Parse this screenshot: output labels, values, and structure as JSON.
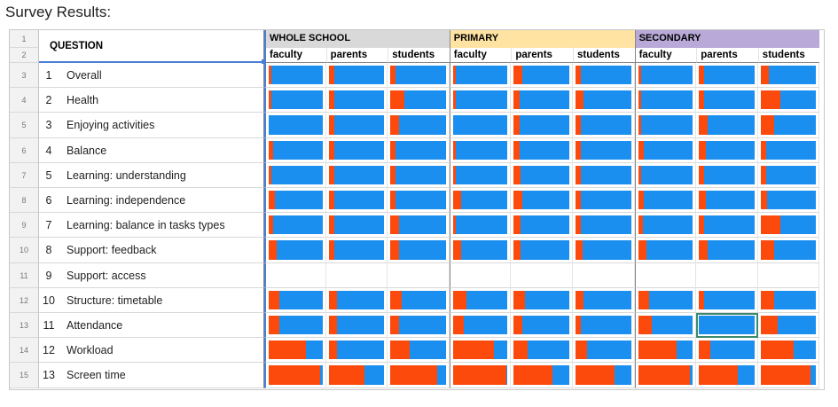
{
  "title": "Survey Results:",
  "colors": {
    "negative": "#fc4a0d",
    "positive": "#1a8ff0",
    "whole_school": "#d9d9d9",
    "primary": "#ffe3a3",
    "secondary": "#b8a9d8"
  },
  "question_header": "QUESTION",
  "groups": [
    {
      "label": "WHOLE SCHOOL",
      "color": "#d9d9d9"
    },
    {
      "label": "PRIMARY",
      "color": "#ffe3a3"
    },
    {
      "label": "SECONDARY",
      "color": "#b8a9d8"
    }
  ],
  "subcols": [
    "faculty",
    "parents",
    "students"
  ],
  "header_rows": [
    "1",
    "2"
  ],
  "rows": [
    {
      "rownum": "3",
      "num": "1",
      "label": "Overall",
      "neg": [
        0.05,
        0.1,
        0.1,
        0.05,
        0.15,
        0.1,
        0.05,
        0.1,
        0.15
      ]
    },
    {
      "rownum": "4",
      "num": "2",
      "label": "Health",
      "neg": [
        0.05,
        0.1,
        0.25,
        0.05,
        0.1,
        0.15,
        0.05,
        0.1,
        0.35
      ]
    },
    {
      "rownum": "5",
      "num": "3",
      "label": "Enjoying activities",
      "neg": [
        0.0,
        0.1,
        0.15,
        0.0,
        0.1,
        0.1,
        0.05,
        0.15,
        0.25
      ]
    },
    {
      "rownum": "6",
      "num": "4",
      "label": "Balance",
      "neg": [
        0.08,
        0.1,
        0.1,
        0.05,
        0.1,
        0.1,
        0.1,
        0.12,
        0.1
      ]
    },
    {
      "rownum": "7",
      "num": "5",
      "label": "Learning: understanding",
      "neg": [
        0.05,
        0.1,
        0.1,
        0.05,
        0.12,
        0.1,
        0.05,
        0.1,
        0.1
      ]
    },
    {
      "rownum": "8",
      "num": "6",
      "label": "Learning: independence",
      "neg": [
        0.12,
        0.1,
        0.1,
        0.15,
        0.15,
        0.1,
        0.1,
        0.12,
        0.12
      ]
    },
    {
      "rownum": "9",
      "num": "7",
      "label": "Learning: balance in tasks types",
      "neg": [
        0.08,
        0.1,
        0.15,
        0.05,
        0.12,
        0.1,
        0.08,
        0.1,
        0.35
      ]
    },
    {
      "rownum": "10",
      "num": "8",
      "label": "Support: feedback",
      "neg": [
        0.15,
        0.1,
        0.15,
        0.15,
        0.12,
        0.12,
        0.15,
        0.15,
        0.25
      ]
    },
    {
      "rownum": "11",
      "num": "9",
      "label": "Support: access",
      "neg": null
    },
    {
      "rownum": "12",
      "num": "10",
      "label": "Structure: timetable",
      "neg": [
        0.2,
        0.15,
        0.2,
        0.25,
        0.2,
        0.15,
        0.2,
        0.1,
        0.25
      ]
    },
    {
      "rownum": "13",
      "num": "11",
      "label": "Attendance",
      "neg": [
        0.2,
        0.15,
        0.15,
        0.2,
        0.15,
        0.1,
        0.25,
        0.0,
        0.3
      ]
    },
    {
      "rownum": "14",
      "num": "12",
      "label": "Workload",
      "neg": [
        0.7,
        0.15,
        0.35,
        0.75,
        0.25,
        0.2,
        0.7,
        0.2,
        0.6
      ]
    },
    {
      "rownum": "15",
      "num": "13",
      "label": "Screen time",
      "neg": [
        0.95,
        0.65,
        0.85,
        0.98,
        0.7,
        0.7,
        0.95,
        0.7,
        0.9
      ]
    }
  ]
}
